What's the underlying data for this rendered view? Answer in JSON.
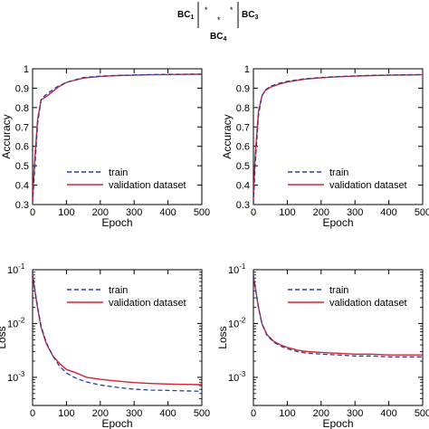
{
  "header": {
    "bc1": "BC",
    "bc1_sub": "1",
    "bc3": "BC",
    "bc3_sub": "3",
    "bc4": "BC",
    "bc4_sub": "4"
  },
  "chart_data": [
    {
      "type": "line",
      "xlabel": "Epoch",
      "ylabel": "Accuracy",
      "xlim": [
        0,
        500
      ],
      "ylim": [
        0.3,
        1
      ],
      "xticks": [
        0,
        100,
        200,
        300,
        400,
        500
      ],
      "yticks": [
        0.3,
        0.4,
        0.5,
        0.6,
        0.7,
        0.8,
        0.9,
        1
      ],
      "ytick_labels": [
        "0.3",
        "0.4",
        "0.5",
        "0.6",
        "0.7",
        "0.8",
        "0.9",
        "1"
      ],
      "legend_position": "lower-center",
      "series": [
        {
          "name": "train",
          "color": "#2c3e9e",
          "style": "dashed",
          "x": [
            0,
            5,
            15,
            25,
            35,
            50,
            75,
            100,
            150,
            200,
            250,
            300,
            350,
            400,
            450,
            500
          ],
          "y": [
            0.3,
            0.45,
            0.72,
            0.84,
            0.86,
            0.88,
            0.91,
            0.93,
            0.955,
            0.962,
            0.966,
            0.968,
            0.97,
            0.971,
            0.972,
            0.973
          ]
        },
        {
          "name": "validation dataset",
          "color": "#d42434",
          "style": "solid",
          "x": [
            0,
            5,
            15,
            25,
            35,
            50,
            75,
            100,
            150,
            200,
            250,
            300,
            350,
            400,
            450,
            500
          ],
          "y": [
            0.32,
            0.5,
            0.74,
            0.84,
            0.85,
            0.87,
            0.905,
            0.93,
            0.952,
            0.961,
            0.965,
            0.967,
            0.969,
            0.97,
            0.971,
            0.972
          ]
        }
      ]
    },
    {
      "type": "line",
      "xlabel": "Epoch",
      "ylabel": "Accuracy",
      "xlim": [
        0,
        500
      ],
      "ylim": [
        0.3,
        1
      ],
      "xticks": [
        0,
        100,
        200,
        300,
        400,
        500
      ],
      "yticks": [
        0.3,
        0.4,
        0.5,
        0.6,
        0.7,
        0.8,
        0.9,
        1
      ],
      "ytick_labels": [
        "0.3",
        "0.4",
        "0.5",
        "0.6",
        "0.7",
        "0.8",
        "0.9",
        "1"
      ],
      "legend_position": "lower-center",
      "series": [
        {
          "name": "train",
          "color": "#2c3e9e",
          "style": "dashed",
          "x": [
            0,
            5,
            15,
            25,
            35,
            50,
            75,
            100,
            150,
            200,
            250,
            300,
            350,
            400,
            450,
            500
          ],
          "y": [
            0.3,
            0.5,
            0.76,
            0.86,
            0.89,
            0.91,
            0.925,
            0.935,
            0.948,
            0.955,
            0.96,
            0.963,
            0.966,
            0.968,
            0.969,
            0.97
          ]
        },
        {
          "name": "validation dataset",
          "color": "#d42434",
          "style": "solid",
          "x": [
            0,
            5,
            15,
            25,
            35,
            50,
            75,
            100,
            150,
            200,
            250,
            300,
            350,
            400,
            450,
            500
          ],
          "y": [
            0.33,
            0.55,
            0.78,
            0.86,
            0.888,
            0.905,
            0.92,
            0.932,
            0.946,
            0.954,
            0.959,
            0.962,
            0.965,
            0.967,
            0.968,
            0.969
          ]
        }
      ]
    },
    {
      "type": "line",
      "xlabel": "Epoch",
      "ylabel": "Loss",
      "xlim": [
        0,
        500
      ],
      "ylim": [
        0.0003,
        0.1
      ],
      "yscale": "log",
      "xticks": [
        0,
        100,
        200,
        300,
        400,
        500
      ],
      "yticks": [
        0.1,
        0.01,
        0.001
      ],
      "ytick_labels": [
        "10",
        "10",
        "10"
      ],
      "ytick_exponents": [
        "-1",
        "-2",
        "-3"
      ],
      "legend_position": "upper-right",
      "series": [
        {
          "name": "train",
          "color": "#2c3e9e",
          "style": "dashed",
          "x": [
            0,
            5,
            15,
            25,
            40,
            60,
            80,
            100,
            130,
            160,
            200,
            250,
            300,
            350,
            400,
            450,
            500
          ],
          "y": [
            0.09,
            0.05,
            0.02,
            0.009,
            0.0045,
            0.0025,
            0.0016,
            0.0012,
            0.00095,
            0.00082,
            0.00072,
            0.00065,
            0.0006,
            0.00058,
            0.00057,
            0.00056,
            0.00055
          ]
        },
        {
          "name": "validation dataset",
          "color": "#d42434",
          "style": "solid",
          "x": [
            0,
            5,
            15,
            25,
            40,
            60,
            80,
            100,
            130,
            160,
            200,
            250,
            300,
            350,
            400,
            450,
            500
          ],
          "y": [
            0.085,
            0.048,
            0.019,
            0.0085,
            0.0043,
            0.0025,
            0.0018,
            0.0014,
            0.0012,
            0.001,
            0.00092,
            0.00085,
            0.0008,
            0.00077,
            0.00075,
            0.00074,
            0.00073
          ]
        }
      ]
    },
    {
      "type": "line",
      "xlabel": "Epoch",
      "ylabel": "Loss",
      "xlim": [
        0,
        500
      ],
      "ylim": [
        0.0003,
        0.1
      ],
      "yscale": "log",
      "xticks": [
        0,
        100,
        200,
        300,
        400,
        500
      ],
      "yticks": [
        0.1,
        0.01,
        0.001
      ],
      "ytick_labels": [
        "10",
        "10",
        "10"
      ],
      "ytick_exponents": [
        "-1",
        "-2",
        "-3"
      ],
      "legend_position": "upper-right",
      "series": [
        {
          "name": "train",
          "color": "#2c3e9e",
          "style": "dashed",
          "x": [
            0,
            5,
            15,
            25,
            40,
            60,
            80,
            100,
            130,
            160,
            200,
            250,
            300,
            350,
            400,
            450,
            500
          ],
          "y": [
            0.08,
            0.05,
            0.02,
            0.01,
            0.006,
            0.0045,
            0.0038,
            0.0034,
            0.003,
            0.0028,
            0.0027,
            0.0026,
            0.0025,
            0.0025,
            0.0024,
            0.0024,
            0.0024
          ]
        },
        {
          "name": "validation dataset",
          "color": "#d42434",
          "style": "solid",
          "x": [
            0,
            5,
            15,
            25,
            40,
            60,
            80,
            100,
            130,
            160,
            200,
            250,
            300,
            350,
            400,
            450,
            500
          ],
          "y": [
            0.078,
            0.048,
            0.02,
            0.01,
            0.0062,
            0.0047,
            0.004,
            0.0036,
            0.0032,
            0.003,
            0.0029,
            0.0028,
            0.0027,
            0.0027,
            0.0026,
            0.0026,
            0.0026
          ]
        }
      ]
    }
  ]
}
